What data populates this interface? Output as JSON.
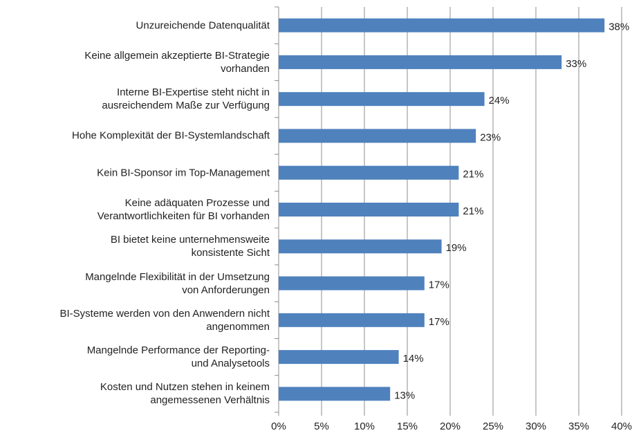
{
  "chart_data": {
    "type": "hbar",
    "categories": [
      "Unzureichende Datenqualität",
      "Keine allgemein akzeptierte BI-Strategie\nvorhanden",
      "Interne BI-Expertise steht nicht in\nausreichendem Maße zur Verfügung",
      "Hohe Komplexität der BI-Systemlandschaft",
      "Kein BI-Sponsor im Top-Management",
      "Keine adäquaten Prozesse und\nVerantwortlichkeiten für BI vorhanden",
      "BI bietet keine unternehmensweite\nkonsistente Sicht",
      "Mangelnde Flexibilität in der Umsetzung\nvon Anforderungen",
      "BI-Systeme werden von den Anwendern nicht\nangenommen",
      "Mangelnde Performance der Reporting-\nund Analysetools",
      "Kosten und Nutzen stehen in keinem\nangemessenen Verhältnis"
    ],
    "values": [
      38,
      33,
      24,
      23,
      21,
      21,
      19,
      17,
      17,
      14,
      13
    ],
    "value_labels": [
      "38%",
      "33%",
      "24%",
      "23%",
      "21%",
      "21%",
      "19%",
      "17%",
      "17%",
      "14%",
      "13%"
    ],
    "color": "#4f81bd",
    "xlim": [
      0,
      40
    ],
    "xticks": [
      {
        "value": 0,
        "label": "0%"
      },
      {
        "value": 5,
        "label": "5%"
      },
      {
        "value": 10,
        "label": "10%"
      },
      {
        "value": 15,
        "label": "15%"
      },
      {
        "value": 20,
        "label": "20%"
      },
      {
        "value": 25,
        "label": "25%"
      },
      {
        "value": 30,
        "label": "30%"
      },
      {
        "value": 35,
        "label": "35%"
      },
      {
        "value": 40,
        "label": "40%"
      }
    ],
    "grid": true
  }
}
